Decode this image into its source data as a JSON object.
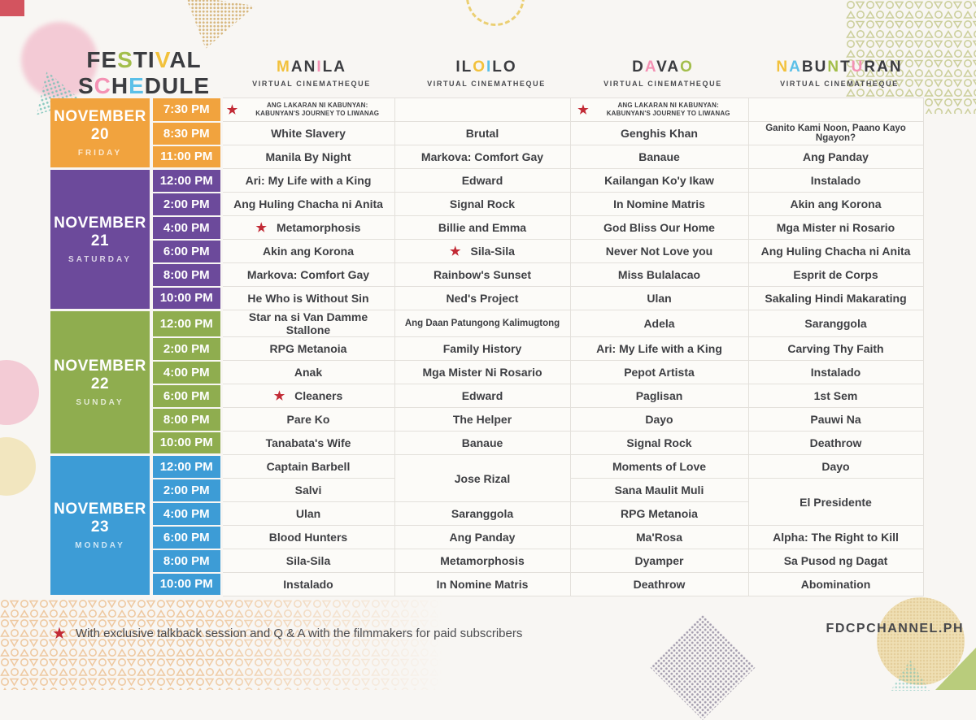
{
  "title": {
    "line1_letters": [
      {
        "ch": "F"
      },
      {
        "ch": "E"
      },
      {
        "ch": "S",
        "color": "#A3BE4B"
      },
      {
        "ch": "T"
      },
      {
        "ch": "I"
      },
      {
        "ch": "V",
        "color": "#F2C13B"
      },
      {
        "ch": "A"
      },
      {
        "ch": "L"
      }
    ],
    "line2_letters": [
      {
        "ch": "S"
      },
      {
        "ch": "C",
        "color": "#F492B4"
      },
      {
        "ch": "H"
      },
      {
        "ch": "E",
        "color": "#5BC0E8"
      },
      {
        "ch": "D"
      },
      {
        "ch": "U"
      },
      {
        "ch": "L"
      },
      {
        "ch": "E"
      }
    ]
  },
  "cinematheque_label": "VIRTUAL CINEMATHEQUE",
  "cities": [
    {
      "name": "MANILA",
      "letters": [
        {
          "ch": "M",
          "color": "#F2C13B"
        },
        {
          "ch": "A"
        },
        {
          "ch": "N"
        },
        {
          "ch": "I",
          "color": "#F492B4"
        },
        {
          "ch": "L"
        },
        {
          "ch": "A"
        }
      ]
    },
    {
      "name": "ILOILO",
      "letters": [
        {
          "ch": "I"
        },
        {
          "ch": "L"
        },
        {
          "ch": "O",
          "color": "#F2C13B"
        },
        {
          "ch": "I",
          "color": "#5BC0E8"
        },
        {
          "ch": "L"
        },
        {
          "ch": "O"
        }
      ]
    },
    {
      "name": "DAVAO",
      "letters": [
        {
          "ch": "D"
        },
        {
          "ch": "A",
          "color": "#F492B4"
        },
        {
          "ch": "V"
        },
        {
          "ch": "A"
        },
        {
          "ch": "O",
          "color": "#A3BE4B"
        }
      ]
    },
    {
      "name": "NABUNTURAN",
      "letters": [
        {
          "ch": "N",
          "color": "#F2C13B"
        },
        {
          "ch": "A",
          "color": "#5BC0E8"
        },
        {
          "ch": "B"
        },
        {
          "ch": "U"
        },
        {
          "ch": "N",
          "color": "#A3BE4B"
        },
        {
          "ch": "T"
        },
        {
          "ch": "U",
          "color": "#F492B4"
        },
        {
          "ch": "R"
        },
        {
          "ch": "A"
        },
        {
          "ch": "N"
        }
      ]
    }
  ],
  "icons": {
    "star": "★"
  },
  "colors": {
    "november20": "#F1A33E",
    "november21": "#6C4A9B",
    "november22": "#8FAD4F",
    "november23": "#3D9CD6",
    "star_red": "#C22A35",
    "letter_yellow": "#F2C13B",
    "letter_pink": "#F492B4",
    "letter_blue": "#5BC0E8",
    "letter_green": "#A3BE4B"
  },
  "days": [
    {
      "date": "NOVEMBER 20",
      "weekday": "FRIDAY",
      "color": "#F1A33E",
      "rows": [
        {
          "time": "7:30 PM",
          "films": [
            {
              "title": "ANG LAKARAN NI KABUNYAN: KABUNYAN'S JOURNEY TO LIWANAG",
              "star": true,
              "small": true
            },
            {
              "title": ""
            },
            {
              "title": "ANG LAKARAN NI KABUNYAN: KABUNYAN'S JOURNEY TO LIWANAG",
              "star": true,
              "small": true
            },
            {
              "title": ""
            }
          ]
        },
        {
          "time": "8:30 PM",
          "films": [
            {
              "title": "White Slavery"
            },
            {
              "title": "Brutal"
            },
            {
              "title": "Genghis Khan"
            },
            {
              "title": "Ganito Kami Noon, Paano Kayo Ngayon?",
              "fit": true
            }
          ]
        },
        {
          "time": "11:00 PM",
          "films": [
            {
              "title": "Manila By Night"
            },
            {
              "title": "Markova: Comfort Gay"
            },
            {
              "title": "Banaue"
            },
            {
              "title": "Ang Panday"
            }
          ]
        }
      ]
    },
    {
      "date": "NOVEMBER 21",
      "weekday": "SATURDAY",
      "color": "#6C4A9B",
      "rows": [
        {
          "time": "12:00 PM",
          "films": [
            {
              "title": "Ari: My Life with a King"
            },
            {
              "title": "Edward"
            },
            {
              "title": "Kailangan Ko'y Ikaw"
            },
            {
              "title": "Instalado"
            }
          ]
        },
        {
          "time": "2:00 PM",
          "films": [
            {
              "title": "Ang Huling Chacha ni Anita"
            },
            {
              "title": "Signal Rock"
            },
            {
              "title": "In Nomine Matris"
            },
            {
              "title": "Akin ang Korona"
            }
          ]
        },
        {
          "time": "4:00 PM",
          "films": [
            {
              "title": "Metamorphosis",
              "star": true
            },
            {
              "title": "Billie and Emma"
            },
            {
              "title": "God Bliss Our Home"
            },
            {
              "title": "Mga Mister ni Rosario"
            }
          ]
        },
        {
          "time": "6:00 PM",
          "films": [
            {
              "title": "Akin ang Korona"
            },
            {
              "title": "Sila-Sila",
              "star": true
            },
            {
              "title": "Never Not Love you"
            },
            {
              "title": "Ang Huling Chacha ni Anita"
            }
          ]
        },
        {
          "time": "8:00 PM",
          "films": [
            {
              "title": "Markova: Comfort Gay"
            },
            {
              "title": "Rainbow's Sunset"
            },
            {
              "title": "Miss Bulalacao"
            },
            {
              "title": "Esprit de Corps"
            }
          ]
        },
        {
          "time": "10:00 PM",
          "films": [
            {
              "title": "He Who is Without Sin"
            },
            {
              "title": "Ned's Project"
            },
            {
              "title": "Ulan"
            },
            {
              "title": "Sakaling Hindi Makarating"
            }
          ]
        }
      ]
    },
    {
      "date": "NOVEMBER 22",
      "weekday": "SUNDAY",
      "color": "#8FAD4F",
      "rows": [
        {
          "time": "12:00 PM",
          "films": [
            {
              "title": "Star na si Van Damme Stallone"
            },
            {
              "title": "Ang Daan Patungong Kalimugtong",
              "fit": true
            },
            {
              "title": "Adela"
            },
            {
              "title": "Saranggola"
            }
          ]
        },
        {
          "time": "2:00 PM",
          "films": [
            {
              "title": "RPG Metanoia"
            },
            {
              "title": "Family History"
            },
            {
              "title": "Ari: My Life with a King"
            },
            {
              "title": "Carving Thy Faith"
            }
          ]
        },
        {
          "time": "4:00 PM",
          "films": [
            {
              "title": "Anak"
            },
            {
              "title": "Mga Mister Ni Rosario"
            },
            {
              "title": "Pepot Artista"
            },
            {
              "title": "Instalado"
            }
          ]
        },
        {
          "time": "6:00 PM",
          "films": [
            {
              "title": "Cleaners",
              "star": true
            },
            {
              "title": "Edward"
            },
            {
              "title": "Paglisan"
            },
            {
              "title": "1st Sem"
            }
          ]
        },
        {
          "time": "8:00 PM",
          "films": [
            {
              "title": "Pare Ko"
            },
            {
              "title": "The Helper"
            },
            {
              "title": "Dayo"
            },
            {
              "title": "Pauwi Na"
            }
          ]
        },
        {
          "time": "10:00 PM",
          "films": [
            {
              "title": "Tanabata's Wife"
            },
            {
              "title": "Banaue"
            },
            {
              "title": "Signal Rock"
            },
            {
              "title": "Deathrow"
            }
          ]
        }
      ]
    },
    {
      "date": "NOVEMBER 23",
      "weekday": "MONDAY",
      "color": "#3D9CD6",
      "rows": [
        {
          "time": "12:00 PM",
          "films": [
            {
              "title": "Captain Barbell"
            },
            {
              "title": "Jose Rizal",
              "rowspan": 2
            },
            {
              "title": "Moments of Love"
            },
            {
              "title": "Dayo"
            }
          ]
        },
        {
          "time": "2:00 PM",
          "films": [
            {
              "title": "Salvi"
            },
            {
              "title": "Sana Maulit Muli"
            },
            {
              "title": "El Presidente",
              "rowspan": 2
            }
          ]
        },
        {
          "time": "4:00 PM",
          "films": [
            {
              "title": "Ulan"
            },
            {
              "title": "Saranggola"
            },
            {
              "title": "RPG Metanoia"
            }
          ]
        },
        {
          "time": "6:00 PM",
          "films": [
            {
              "title": "Blood Hunters"
            },
            {
              "title": "Ang Panday"
            },
            {
              "title": "Ma'Rosa"
            },
            {
              "title": "Alpha: The Right to Kill"
            }
          ]
        },
        {
          "time": "8:00 PM",
          "films": [
            {
              "title": "Sila-Sila"
            },
            {
              "title": "Metamorphosis"
            },
            {
              "title": "Dyamper"
            },
            {
              "title": "Sa Pusod ng Dagat"
            }
          ]
        },
        {
          "time": "10:00 PM",
          "films": [
            {
              "title": "Instalado"
            },
            {
              "title": "In Nomine Matris"
            },
            {
              "title": "Deathrow"
            },
            {
              "title": "Abomination"
            }
          ]
        }
      ]
    }
  ],
  "footnote": "With exclusive talkback session and Q & A with the filmmakers for paid subscribers",
  "website": "FDCPCHANNEL.PH"
}
